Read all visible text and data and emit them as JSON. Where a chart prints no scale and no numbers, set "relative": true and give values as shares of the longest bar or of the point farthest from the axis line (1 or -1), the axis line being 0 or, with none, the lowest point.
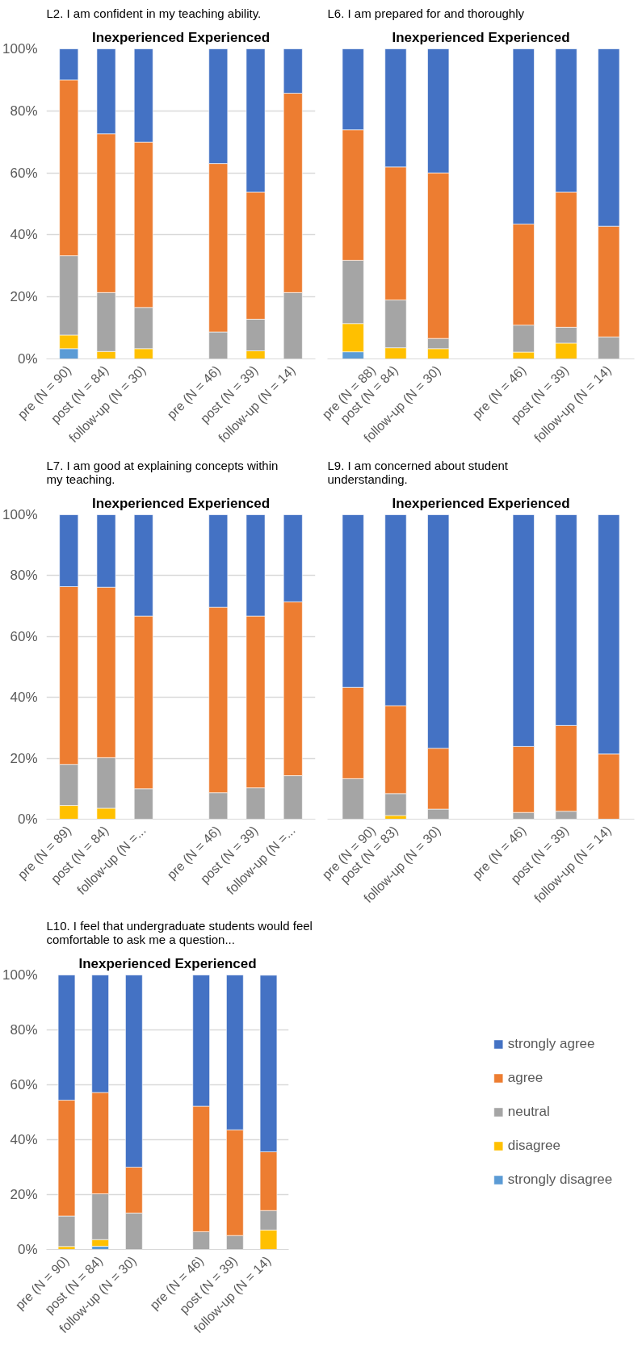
{
  "chart_data": [
    {
      "type": "bar",
      "stacked": true,
      "title": "L2. I am confident in my teaching ability.",
      "subtitle": "Inexperienced Experienced",
      "categories": [
        "pre (N = 90)",
        "post (N = 84)",
        "follow-up (N = 30)",
        null,
        "pre (N = 46)",
        "post (N = 39)",
        "follow-up (N = 14)"
      ],
      "ylim": [
        0,
        100
      ],
      "yticks": [
        {
          "value": 0,
          "label": "0%"
        },
        {
          "value": 20,
          "label": "20%"
        },
        {
          "value": 40,
          "label": "40%"
        },
        {
          "value": 60,
          "label": "60%"
        },
        {
          "value": 80,
          "label": "80%"
        },
        {
          "value": 100,
          "label": "100%"
        }
      ],
      "grid": "y",
      "series": [
        {
          "color": "#5b9bd5",
          "values": [
            3.3,
            0,
            0,
            null,
            0,
            0,
            0
          ]
        },
        {
          "color": "#ffc000",
          "values": [
            4.4,
            2.4,
            3.3,
            null,
            0,
            2.6,
            0
          ]
        },
        {
          "color": "#a5a5a5",
          "values": [
            25.6,
            19.0,
            13.3,
            null,
            8.7,
            10.2,
            21.4
          ]
        },
        {
          "color": "#ed7d31",
          "values": [
            56.7,
            51.2,
            53.3,
            null,
            54.3,
            41.0,
            64.3
          ]
        },
        {
          "color": "#4472c4",
          "values": [
            10.0,
            27.4,
            30.1,
            null,
            37.0,
            46.2,
            14.3
          ]
        }
      ]
    },
    {
      "type": "bar",
      "stacked": true,
      "relative": true,
      "tick_labels": "x",
      "title": "L6. I am prepared for and thoroughly",
      "subtitle": "Inexperienced Experienced",
      "categories": [
        "pre (N = 88)",
        "post (N = 84)",
        "follow-up (N = 30)",
        null,
        "pre (N = 46)",
        "post (N = 39)",
        "follow-up (N = 14)"
      ],
      "series": [
        {
          "color": "#5b9bd5",
          "values": [
            0.023,
            0,
            0,
            null,
            0,
            0,
            0
          ]
        },
        {
          "color": "#ffc000",
          "values": [
            0.091,
            0.036,
            0.033,
            null,
            0.022,
            0.051,
            0
          ]
        },
        {
          "color": "#a5a5a5",
          "values": [
            0.204,
            0.154,
            0.033,
            null,
            0.087,
            0.051,
            0.071
          ]
        },
        {
          "color": "#ed7d31",
          "values": [
            0.421,
            0.429,
            0.534,
            null,
            0.326,
            0.436,
            0.357
          ]
        },
        {
          "color": "#4472c4",
          "values": [
            0.261,
            0.381,
            0.4,
            null,
            0.565,
            0.462,
            0.572
          ]
        }
      ]
    },
    {
      "type": "bar",
      "stacked": true,
      "title": "L7. I am good at explaining concepts within my teaching.",
      "subtitle": "Inexperienced Experienced",
      "categories": [
        "pre (N = 89)",
        "post (N = 84)",
        "follow-up (N =...",
        null,
        "pre (N = 46)",
        "post (N = 39)",
        "follow-up (N =..."
      ],
      "ylim": [
        0,
        100
      ],
      "yticks": [
        {
          "value": 0,
          "label": "0%"
        },
        {
          "value": 20,
          "label": "20%"
        },
        {
          "value": 40,
          "label": "40%"
        },
        {
          "value": 60,
          "label": "60%"
        },
        {
          "value": 80,
          "label": "80%"
        },
        {
          "value": 100,
          "label": "100%"
        }
      ],
      "grid": "y",
      "series": [
        {
          "color": "#ffc000",
          "values": [
            4.5,
            3.6,
            0,
            null,
            0,
            0,
            0
          ]
        },
        {
          "color": "#a5a5a5",
          "values": [
            13.5,
            16.6,
            10.0,
            null,
            8.7,
            10.3,
            14.3
          ]
        },
        {
          "color": "#ed7d31",
          "values": [
            58.4,
            56.0,
            56.7,
            null,
            60.9,
            56.4,
            57.1
          ]
        },
        {
          "color": "#4472c4",
          "values": [
            23.6,
            23.8,
            33.3,
            null,
            30.4,
            33.3,
            28.6
          ]
        }
      ]
    },
    {
      "type": "bar",
      "stacked": true,
      "relative": true,
      "tick_labels": "x",
      "title": "L9. I am concerned about student understanding.",
      "subtitle": "Inexperienced Experienced",
      "categories": [
        "pre (N = 90)",
        "post (N = 83)",
        "follow-up (N = 30)",
        null,
        "pre (N = 46)",
        "post (N = 39)",
        "follow-up (N = 14)"
      ],
      "series": [
        {
          "color": "#ffc000",
          "values": [
            0,
            0.012,
            0,
            null,
            0,
            0,
            0
          ]
        },
        {
          "color": "#a5a5a5",
          "values": [
            0.133,
            0.072,
            0.033,
            null,
            0.022,
            0.026,
            0
          ]
        },
        {
          "color": "#ed7d31",
          "values": [
            0.3,
            0.289,
            0.2,
            null,
            0.217,
            0.282,
            0.214
          ]
        },
        {
          "color": "#4472c4",
          "values": [
            0.567,
            0.627,
            0.767,
            null,
            0.761,
            0.692,
            0.786
          ]
        }
      ]
    },
    {
      "type": "bar",
      "stacked": true,
      "title": "L10. I feel that undergraduate students would feel comfortable to ask me a question...",
      "subtitle": "Inexperienced Experienced",
      "categories": [
        "pre (N = 90)",
        "post (N = 84)",
        "follow-up (N = 30)",
        null,
        "pre (N = 46)",
        "post (N = 39)",
        "follow-up (N = 14)"
      ],
      "ylim": [
        0,
        100
      ],
      "yticks": [
        {
          "value": 0,
          "label": "0%"
        },
        {
          "value": 20,
          "label": "20%"
        },
        {
          "value": 40,
          "label": "40%"
        },
        {
          "value": 60,
          "label": "60%"
        },
        {
          "value": 80,
          "label": "80%"
        },
        {
          "value": 100,
          "label": "100%"
        }
      ],
      "grid": "y",
      "legend": "right",
      "series": [
        {
          "name": "strongly disagree",
          "color": "#5b9bd5",
          "values": [
            0,
            1.2,
            0,
            null,
            0,
            0,
            0
          ]
        },
        {
          "name": "disagree",
          "color": "#ffc000",
          "values": [
            1.1,
            2.4,
            0,
            null,
            0,
            0,
            7.1
          ]
        },
        {
          "name": "neutral",
          "color": "#a5a5a5",
          "values": [
            11.1,
            16.7,
            13.3,
            null,
            6.5,
            5.1,
            7.1
          ]
        },
        {
          "name": "agree",
          "color": "#ed7d31",
          "values": [
            42.2,
            36.9,
            16.7,
            null,
            45.7,
            38.5,
            21.4
          ]
        },
        {
          "name": "strongly agree",
          "color": "#4472c4",
          "values": [
            45.6,
            42.9,
            70.0,
            null,
            47.8,
            56.4,
            64.3
          ]
        }
      ]
    }
  ]
}
